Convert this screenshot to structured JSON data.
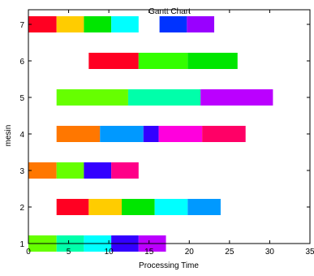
{
  "chart_data": {
    "type": "gantt",
    "title": "Gantt Chart",
    "xlabel": "Processing Time",
    "ylabel": "mesin",
    "xlim": [
      0,
      35
    ],
    "ylim": [
      1,
      7
    ],
    "xticks": [
      0,
      5,
      10,
      15,
      20,
      25,
      30,
      35
    ],
    "yticks": [
      1,
      2,
      3,
      4,
      5,
      6,
      7
    ],
    "xtick_labels": [
      "0",
      "5",
      "10",
      "15",
      "20",
      "25",
      "30",
      "35"
    ],
    "ytick_labels": [
      "1",
      "2",
      "3",
      "4",
      "5",
      "6",
      "7"
    ],
    "grid": false,
    "legend": "none",
    "bar_height": 0.25,
    "segment_colors": {
      "red": "#ff0000",
      "orange": "#ff7f00",
      "yellow": "#ffd700",
      "green": "#00e600",
      "lime": "#66ff00",
      "cyan": "#00ffff",
      "teal": "#00ffaa",
      "blue": "#0077ff",
      "darkblue": "#3300ff",
      "purple": "#6600ff",
      "violet": "#9900ff",
      "magenta": "#ff00ff",
      "pink": "#ff0088"
    },
    "rows": [
      {
        "machine": 7,
        "segments": [
          {
            "start": 0,
            "end": 3.5,
            "color": "#ff0022"
          },
          {
            "start": 3.5,
            "end": 6.9,
            "color": "#ffcc00"
          },
          {
            "start": 6.9,
            "end": 10.3,
            "color": "#00e600"
          },
          {
            "start": 10.3,
            "end": 13.7,
            "color": "#00ffff"
          },
          {
            "start": 16.3,
            "end": 19.7,
            "color": "#0033ff"
          },
          {
            "start": 19.7,
            "end": 23.1,
            "color": "#9900ff"
          }
        ]
      },
      {
        "machine": 6,
        "segments": [
          {
            "start": 7.5,
            "end": 13.7,
            "color": "#ff0022"
          },
          {
            "start": 13.7,
            "end": 19.8,
            "color": "#33ff00"
          },
          {
            "start": 19.8,
            "end": 26.0,
            "color": "#00e600"
          }
        ]
      },
      {
        "machine": 5,
        "segments": [
          {
            "start": 3.5,
            "end": 12.4,
            "color": "#66ff00"
          },
          {
            "start": 12.4,
            "end": 21.4,
            "color": "#00ffaa"
          },
          {
            "start": 21.4,
            "end": 30.4,
            "color": "#bb00ff"
          }
        ]
      },
      {
        "machine": 4,
        "segments": [
          {
            "start": 3.5,
            "end": 8.9,
            "color": "#ff7700"
          },
          {
            "start": 8.9,
            "end": 14.3,
            "color": "#0099ff"
          },
          {
            "start": 14.3,
            "end": 16.2,
            "color": "#3300ff"
          },
          {
            "start": 16.2,
            "end": 21.6,
            "color": "#ff00dd"
          },
          {
            "start": 21.6,
            "end": 27.0,
            "color": "#ff0066"
          }
        ]
      },
      {
        "machine": 3,
        "segments": [
          {
            "start": 0,
            "end": 3.5,
            "color": "#ff7700"
          },
          {
            "start": 3.5,
            "end": 6.9,
            "color": "#66ff00"
          },
          {
            "start": 6.9,
            "end": 10.3,
            "color": "#3300ff"
          },
          {
            "start": 10.3,
            "end": 13.7,
            "color": "#ff0088"
          }
        ]
      },
      {
        "machine": 2,
        "segments": [
          {
            "start": 3.5,
            "end": 7.5,
            "color": "#ff0022"
          },
          {
            "start": 7.5,
            "end": 11.6,
            "color": "#ffcc00"
          },
          {
            "start": 11.6,
            "end": 15.7,
            "color": "#00e600"
          },
          {
            "start": 15.7,
            "end": 19.8,
            "color": "#00ffff"
          },
          {
            "start": 19.8,
            "end": 23.9,
            "color": "#0099ff"
          }
        ]
      },
      {
        "machine": 1,
        "segments": [
          {
            "start": 0,
            "end": 3.5,
            "color": "#66ff00"
          },
          {
            "start": 3.5,
            "end": 6.9,
            "color": "#00ffaa"
          },
          {
            "start": 6.9,
            "end": 10.3,
            "color": "#00ffff"
          },
          {
            "start": 10.3,
            "end": 13.7,
            "color": "#3300ff"
          },
          {
            "start": 13.7,
            "end": 17.1,
            "color": "#bb00ff"
          }
        ]
      }
    ]
  }
}
